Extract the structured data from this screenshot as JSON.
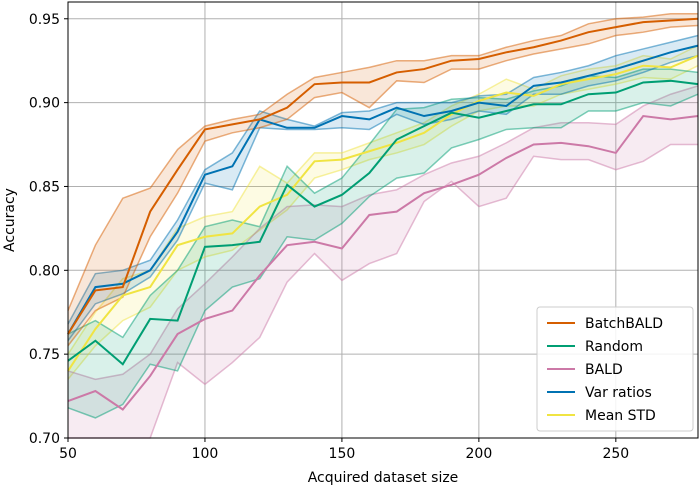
{
  "chart_data": {
    "type": "line",
    "title": "",
    "xlabel": "Acquired dataset size",
    "ylabel": "Accuracy",
    "xlim": [
      50,
      280
    ],
    "ylim": [
      0.7,
      0.96
    ],
    "xticks": [
      50,
      100,
      150,
      200,
      250
    ],
    "yticks": [
      0.7,
      0.75,
      0.8,
      0.85,
      0.9,
      0.95
    ],
    "xtick_labels": [
      "50",
      "100",
      "150",
      "200",
      "250"
    ],
    "ytick_labels": [
      "0.70",
      "0.75",
      "0.80",
      "0.85",
      "0.90",
      "0.95"
    ],
    "grid": true,
    "legend_position": "lower-right",
    "x": [
      50,
      60,
      70,
      80,
      90,
      100,
      110,
      120,
      130,
      140,
      150,
      160,
      170,
      180,
      190,
      200,
      210,
      220,
      230,
      240,
      250,
      260,
      270,
      280
    ],
    "series": [
      {
        "name": "Mean STD",
        "color": "#f0e442",
        "values": [
          0.74,
          0.765,
          0.785,
          0.79,
          0.815,
          0.82,
          0.822,
          0.838,
          0.845,
          0.865,
          0.866,
          0.871,
          0.876,
          0.882,
          0.893,
          0.901,
          0.906,
          0.904,
          0.911,
          0.914,
          0.917,
          0.922,
          0.921,
          0.928
        ],
        "lower": [
          0.735,
          0.755,
          0.77,
          0.778,
          0.8,
          0.808,
          0.812,
          0.824,
          0.836,
          0.855,
          0.86,
          0.866,
          0.87,
          0.875,
          0.886,
          0.895,
          0.898,
          0.898,
          0.905,
          0.908,
          0.911,
          0.915,
          0.914,
          0.922
        ],
        "upper": [
          0.75,
          0.775,
          0.795,
          0.8,
          0.825,
          0.832,
          0.835,
          0.862,
          0.852,
          0.87,
          0.87,
          0.876,
          0.882,
          0.888,
          0.898,
          0.905,
          0.914,
          0.908,
          0.916,
          0.92,
          0.922,
          0.928,
          0.926,
          0.934
        ]
      },
      {
        "name": "BALD",
        "color": "#cc79a7",
        "values": [
          0.722,
          0.728,
          0.717,
          0.737,
          0.762,
          0.771,
          0.776,
          0.797,
          0.815,
          0.817,
          0.813,
          0.833,
          0.835,
          0.846,
          0.851,
          0.857,
          0.867,
          0.875,
          0.876,
          0.874,
          0.87,
          0.892,
          0.89,
          0.892
        ],
        "lower": [
          0.7,
          0.7,
          0.7,
          0.7,
          0.745,
          0.732,
          0.745,
          0.76,
          0.793,
          0.81,
          0.794,
          0.804,
          0.81,
          0.841,
          0.853,
          0.838,
          0.843,
          0.868,
          0.866,
          0.866,
          0.86,
          0.865,
          0.875,
          0.875
        ],
        "upper": [
          0.74,
          0.735,
          0.738,
          0.75,
          0.777,
          0.792,
          0.808,
          0.825,
          0.838,
          0.839,
          0.838,
          0.845,
          0.848,
          0.857,
          0.864,
          0.868,
          0.876,
          0.885,
          0.888,
          0.888,
          0.887,
          0.898,
          0.905,
          0.91
        ]
      },
      {
        "name": "Random",
        "color": "#009e73",
        "values": [
          0.746,
          0.758,
          0.744,
          0.771,
          0.77,
          0.814,
          0.815,
          0.817,
          0.851,
          0.838,
          0.845,
          0.858,
          0.878,
          0.886,
          0.894,
          0.891,
          0.895,
          0.899,
          0.899,
          0.905,
          0.906,
          0.912,
          0.913,
          0.911
        ],
        "lower": [
          0.718,
          0.712,
          0.72,
          0.744,
          0.74,
          0.776,
          0.79,
          0.795,
          0.82,
          0.818,
          0.828,
          0.844,
          0.855,
          0.858,
          0.873,
          0.878,
          0.884,
          0.885,
          0.885,
          0.895,
          0.895,
          0.9,
          0.898,
          0.905
        ],
        "upper": [
          0.762,
          0.77,
          0.76,
          0.785,
          0.8,
          0.826,
          0.83,
          0.826,
          0.862,
          0.846,
          0.855,
          0.875,
          0.896,
          0.897,
          0.902,
          0.903,
          0.902,
          0.907,
          0.91,
          0.916,
          0.915,
          0.92,
          0.92,
          0.918
        ]
      },
      {
        "name": "Var ratios",
        "color": "#0072b2",
        "values": [
          0.762,
          0.79,
          0.792,
          0.8,
          0.823,
          0.857,
          0.862,
          0.89,
          0.885,
          0.885,
          0.892,
          0.89,
          0.897,
          0.892,
          0.895,
          0.9,
          0.898,
          0.91,
          0.912,
          0.916,
          0.92,
          0.925,
          0.93,
          0.934
        ],
        "lower": [
          0.758,
          0.78,
          0.786,
          0.796,
          0.818,
          0.852,
          0.848,
          0.885,
          0.884,
          0.884,
          0.885,
          0.884,
          0.893,
          0.887,
          0.89,
          0.895,
          0.893,
          0.905,
          0.905,
          0.91,
          0.913,
          0.918,
          0.924,
          0.928
        ],
        "upper": [
          0.768,
          0.798,
          0.8,
          0.806,
          0.83,
          0.86,
          0.87,
          0.895,
          0.89,
          0.886,
          0.894,
          0.895,
          0.9,
          0.9,
          0.9,
          0.904,
          0.905,
          0.915,
          0.918,
          0.922,
          0.928,
          0.932,
          0.936,
          0.94
        ]
      },
      {
        "name": "BatchBALD",
        "color": "#d55e00",
        "values": [
          0.762,
          0.788,
          0.79,
          0.835,
          0.86,
          0.884,
          0.887,
          0.89,
          0.897,
          0.911,
          0.912,
          0.912,
          0.918,
          0.92,
          0.925,
          0.926,
          0.93,
          0.933,
          0.937,
          0.942,
          0.945,
          0.948,
          0.949,
          0.95
        ],
        "lower": [
          0.755,
          0.776,
          0.784,
          0.82,
          0.846,
          0.877,
          0.882,
          0.885,
          0.89,
          0.903,
          0.906,
          0.897,
          0.913,
          0.912,
          0.92,
          0.92,
          0.925,
          0.929,
          0.932,
          0.935,
          0.94,
          0.942,
          0.945,
          0.946
        ],
        "upper": [
          0.776,
          0.815,
          0.843,
          0.849,
          0.872,
          0.886,
          0.89,
          0.893,
          0.905,
          0.915,
          0.918,
          0.921,
          0.925,
          0.925,
          0.928,
          0.928,
          0.933,
          0.937,
          0.94,
          0.947,
          0.95,
          0.951,
          0.953,
          0.953
        ]
      }
    ],
    "legend_entries": [
      "BatchBALD",
      "Random",
      "BALD",
      "Var ratios",
      "Mean STD"
    ]
  }
}
